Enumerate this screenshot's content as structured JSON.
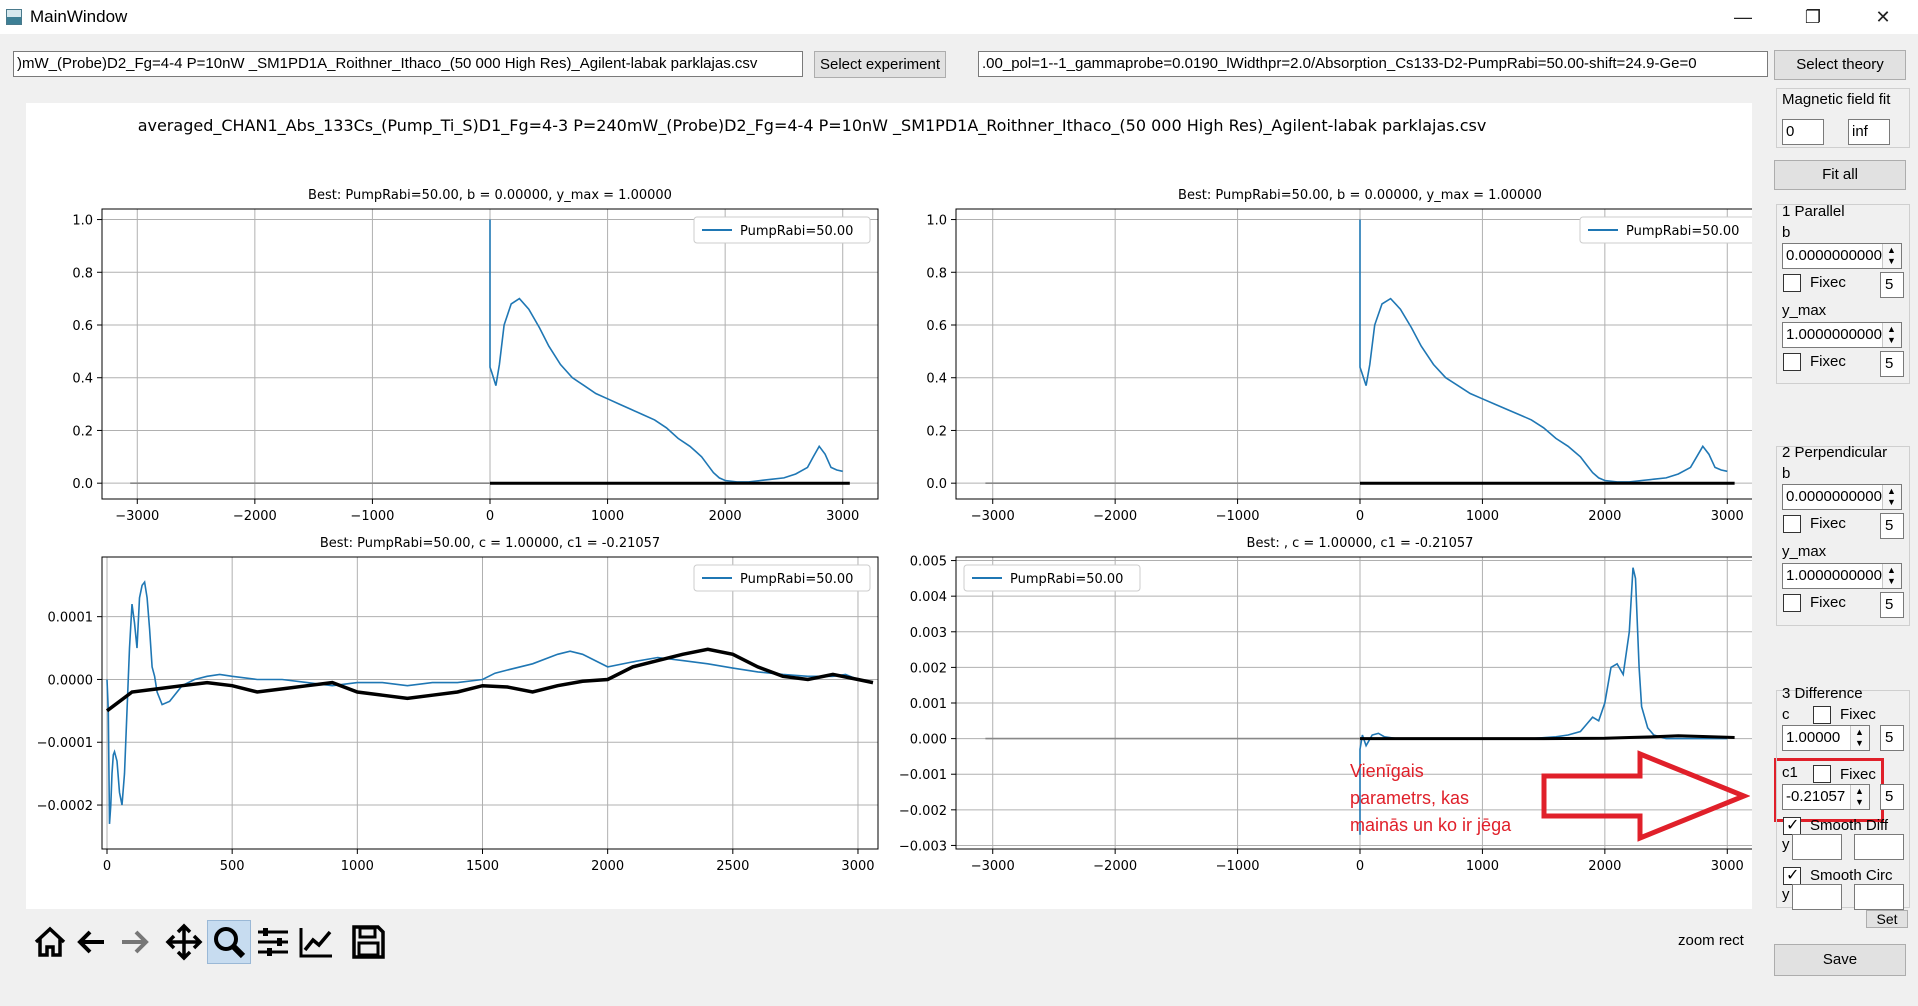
{
  "window": {
    "title": "MainWindow",
    "minimize": "—",
    "maximize": "❐",
    "close": "✕"
  },
  "top": {
    "experiment_path": ")mW_(Probe)D2_Fg=4-4 P=10nW _SM1PD1A_Roithner_Ithaco_(50 000 High Res)_Agilent-labak parklajas.csv",
    "select_experiment": "Select experiment",
    "theory_path": ".00_pol=1--1_gammaprobe=0.0190_lWidthpr=2.0/Absorption_Cs133-D2-PumpRabi=50.00-shift=24.9-Ge=0",
    "select_theory": "Select theory"
  },
  "figure": {
    "suptitle": "averaged_CHAN1_Abs_133Cs_(Pump_Ti_S)D1_Fg=4-3 P=240mW_(Probe)D2_Fg=4-4 P=10nW _SM1PD1A_Roithner_Ithaco_(50 000 High Res)_Agilent-labak parklajas.csv"
  },
  "chart_data": [
    {
      "type": "line",
      "title": "Best: PumpRabi=50.00, b = 0.00000, y_max = 1.00000",
      "xlim": [
        -3300,
        3300
      ],
      "ylim": [
        -0.06,
        1.04
      ],
      "xticks": [
        -3000,
        -2000,
        -1000,
        0,
        1000,
        2000,
        3000
      ],
      "yticks": [
        0.0,
        0.2,
        0.4,
        0.6,
        0.8,
        1.0
      ],
      "ytick_labels": [
        "0.0",
        "0.2",
        "0.4",
        "0.6",
        "0.8",
        "1.0"
      ],
      "grid": true,
      "legend": "upper-right",
      "series": [
        {
          "name": "PumpRabi=50.00",
          "color": "#1f77b4",
          "x": [
            0,
            0,
            15,
            50,
            80,
            120,
            180,
            250,
            330,
            420,
            500,
            600,
            700,
            800,
            900,
            1000,
            1100,
            1200,
            1300,
            1400,
            1500,
            1600,
            1700,
            1750,
            1800,
            1850,
            1900,
            1950,
            2000,
            2100,
            2200,
            2300,
            2400,
            2500,
            2600,
            2700,
            2750,
            2800,
            2850,
            2900,
            2950,
            3000
          ],
          "y": [
            1.0,
            0.44,
            0.42,
            0.37,
            0.45,
            0.6,
            0.68,
            0.7,
            0.66,
            0.59,
            0.52,
            0.45,
            0.4,
            0.37,
            0.34,
            0.32,
            0.3,
            0.28,
            0.26,
            0.24,
            0.21,
            0.17,
            0.14,
            0.12,
            0.1,
            0.07,
            0.04,
            0.02,
            0.01,
            0.005,
            0.005,
            0.01,
            0.015,
            0.02,
            0.035,
            0.06,
            0.1,
            0.14,
            0.11,
            0.06,
            0.05,
            0.045
          ]
        },
        {
          "color": "#000000",
          "x": [
            0,
            3060
          ],
          "y": [
            0,
            0
          ]
        },
        {
          "color": "#888888",
          "x": [
            -3060,
            0
          ],
          "y": [
            0,
            0
          ]
        }
      ]
    },
    {
      "type": "line",
      "title": "Best: PumpRabi=50.00, b = 0.00000, y_max = 1.00000",
      "xlim": [
        -3300,
        3300
      ],
      "ylim": [
        -0.06,
        1.04
      ],
      "xticks": [
        -3000,
        -2000,
        -1000,
        0,
        1000,
        2000,
        3000
      ],
      "yticks": [
        0.0,
        0.2,
        0.4,
        0.6,
        0.8,
        1.0
      ],
      "ytick_labels": [
        "0.0",
        "0.2",
        "0.4",
        "0.6",
        "0.8",
        "1.0"
      ],
      "grid": true,
      "legend": "upper-right",
      "series": [
        {
          "name": "PumpRabi=50.00",
          "color": "#1f77b4",
          "x": [
            0,
            0,
            15,
            50,
            80,
            120,
            180,
            250,
            330,
            420,
            500,
            600,
            700,
            800,
            900,
            1000,
            1100,
            1200,
            1300,
            1400,
            1500,
            1600,
            1700,
            1750,
            1800,
            1850,
            1900,
            1950,
            2000,
            2100,
            2200,
            2300,
            2400,
            2500,
            2600,
            2700,
            2750,
            2800,
            2850,
            2900,
            2950,
            3000
          ],
          "y": [
            1.0,
            0.44,
            0.42,
            0.37,
            0.45,
            0.6,
            0.68,
            0.7,
            0.66,
            0.59,
            0.52,
            0.45,
            0.4,
            0.37,
            0.34,
            0.32,
            0.3,
            0.28,
            0.26,
            0.24,
            0.21,
            0.17,
            0.14,
            0.12,
            0.1,
            0.07,
            0.04,
            0.02,
            0.01,
            0.005,
            0.005,
            0.01,
            0.015,
            0.02,
            0.035,
            0.06,
            0.1,
            0.14,
            0.11,
            0.06,
            0.05,
            0.045
          ]
        },
        {
          "color": "#000000",
          "x": [
            0,
            3060
          ],
          "y": [
            0,
            0
          ]
        },
        {
          "color": "#888888",
          "x": [
            -3060,
            0
          ],
          "y": [
            0,
            0
          ]
        }
      ]
    },
    {
      "type": "line",
      "title": "Best: PumpRabi=50.00, c = 1.00000, c1 = -0.21057",
      "xlim": [
        -20,
        3080
      ],
      "ylim": [
        -0.00027,
        0.000195
      ],
      "xticks": [
        0,
        500,
        1000,
        1500,
        2000,
        2500,
        3000
      ],
      "yticks": [
        -0.0002,
        -0.0001,
        0.0,
        0.0001
      ],
      "ytick_labels": [
        "−0.0002",
        "−0.0001",
        "0.0000",
        "0.0001"
      ],
      "grid": true,
      "legend": "upper-right",
      "series": [
        {
          "name": "PumpRabi=50.00",
          "color": "#1f77b4",
          "x": [
            0,
            5,
            10,
            15,
            20,
            25,
            30,
            40,
            50,
            60,
            70,
            80,
            90,
            100,
            110,
            120,
            130,
            140,
            150,
            160,
            170,
            180,
            190,
            200,
            220,
            250,
            300,
            350,
            400,
            450,
            500,
            600,
            700,
            800,
            900,
            1000,
            1100,
            1200,
            1300,
            1400,
            1500,
            1550,
            1600,
            1700,
            1800,
            1850,
            1900,
            2000,
            2100,
            2200,
            2300,
            2400,
            2500,
            2600,
            2700,
            2800,
            2900,
            2950,
            3000
          ],
          "y": [
            0,
            -5e-05,
            -0.00023,
            -0.0002,
            -0.00015,
            -0.00012,
            -0.000115,
            -0.00013,
            -0.00018,
            -0.0002,
            -0.00015,
            -5e-05,
            5e-05,
            0.00012,
            9e-05,
            5e-05,
            0.00013,
            0.00015,
            0.000155,
            0.00013,
            8e-05,
            2e-05,
            5e-06,
            -2e-05,
            -4e-05,
            -3.5e-05,
            -1e-05,
            0.0,
            5e-06,
            8e-06,
            5e-06,
            0.0,
            0.0,
            -5e-06,
            -1e-05,
            -5e-06,
            -5e-06,
            -1e-05,
            -5e-06,
            -5e-06,
            0.0,
            1e-05,
            1.5e-05,
            2.5e-05,
            4e-05,
            4.5e-05,
            4e-05,
            2e-05,
            2.8e-05,
            3.5e-05,
            3e-05,
            2.5e-05,
            1.8e-05,
            1.2e-05,
            8e-06,
            5e-06,
            5e-06,
            8e-06,
            0.0
          ]
        },
        {
          "color": "#000000",
          "x": [
            0,
            100,
            200,
            300,
            400,
            500,
            600,
            700,
            800,
            900,
            1000,
            1100,
            1200,
            1300,
            1400,
            1500,
            1600,
            1700,
            1800,
            1900,
            2000,
            2100,
            2200,
            2300,
            2400,
            2500,
            2600,
            2700,
            2800,
            2900,
            3000,
            3060
          ],
          "y": [
            -5e-05,
            -2e-05,
            -1.5e-05,
            -1e-05,
            -5e-06,
            -1e-05,
            -2e-05,
            -1.5e-05,
            -1e-05,
            -5e-06,
            -2e-05,
            -2.5e-05,
            -3e-05,
            -2.5e-05,
            -2e-05,
            -1e-05,
            -1.2e-05,
            -2e-05,
            -1e-05,
            -3e-06,
            0.0,
            2e-05,
            3e-05,
            4e-05,
            4.8e-05,
            4e-05,
            2e-05,
            5e-06,
            0.0,
            8e-06,
            0.0,
            -5e-06
          ]
        }
      ]
    },
    {
      "type": "line",
      "title": "Best: , c = 1.00000, c1 = -0.21057",
      "xlim": [
        -3300,
        3300
      ],
      "ylim": [
        -0.0031,
        0.0051
      ],
      "xticks": [
        -3000,
        -2000,
        -1000,
        0,
        1000,
        2000,
        3000
      ],
      "yticks": [
        -0.003,
        -0.002,
        -0.001,
        0.0,
        0.001,
        0.002,
        0.003,
        0.004,
        0.005
      ],
      "ytick_labels": [
        "−0.003",
        "−0.002",
        "−0.001",
        "0.000",
        "0.001",
        "0.002",
        "0.003",
        "0.004",
        "0.005"
      ],
      "grid": true,
      "legend": "upper-left",
      "series": [
        {
          "name": "PumpRabi=50.00",
          "color": "#1f77b4",
          "x": [
            0,
            0,
            20,
            50,
            100,
            150,
            200,
            300,
            400,
            600,
            800,
            1000,
            1200,
            1400,
            1600,
            1700,
            1800,
            1850,
            1900,
            1950,
            2000,
            2050,
            2100,
            2150,
            2200,
            2230,
            2250,
            2280,
            2300,
            2350,
            2400,
            2450,
            2500,
            2600,
            2800,
            3000
          ],
          "y": [
            -0.0027,
            -0.0003,
            0.0001,
            -0.0002,
            0.0001,
            0.00015,
            5e-05,
            0.0,
            0.0,
            0.0,
            0.0,
            0.0,
            0.0,
            0.0,
            5e-05,
            0.0001,
            0.0002,
            0.0004,
            0.0006,
            0.0005,
            0.001,
            0.002,
            0.0021,
            0.0018,
            0.003,
            0.0048,
            0.0045,
            0.002,
            0.0009,
            0.0003,
            0.0001,
            5e-05,
            0.0,
            0.0,
            0.0,
            0.0
          ]
        },
        {
          "color": "#000000",
          "x": [
            0,
            1500,
            2000,
            2200,
            2400,
            2600,
            2800,
            3060
          ],
          "y": [
            0,
            0,
            1e-05,
            3e-05,
            5e-05,
            8e-05,
            6e-05,
            3e-05
          ]
        },
        {
          "color": "#888888",
          "x": [
            -3060,
            0
          ],
          "y": [
            0,
            0
          ]
        }
      ]
    }
  ],
  "annotation": {
    "lines": [
      "Vienīgais",
      "parametrs, kas",
      "mainās un ko ir jēga"
    ]
  },
  "toolbar": {
    "status": "zoom rect"
  },
  "panel": {
    "magnetic_title": "Magnetic field fit",
    "mag_min": "0",
    "mag_max": "inf",
    "fit_all": "Fit all",
    "parallel": {
      "title": "1 Parallel",
      "b_label": "b",
      "b_value": "0.0000000000",
      "fixed": "Fixec",
      "b_n": "5",
      "ymax_label": "y_max",
      "ymax_value": "1.0000000000",
      "ymax_n": "5"
    },
    "perpendicular": {
      "title": "2 Perpendicular",
      "b_label": "b",
      "b_value": "0.0000000000",
      "fixed": "Fixec",
      "b_n": "5",
      "ymax_label": "y_max",
      "ymax_value": "1.0000000000",
      "ymax_n": "5"
    },
    "difference": {
      "title": "3 Difference",
      "c_label": "c",
      "c_fixed": "Fixec",
      "c_value": "1.00000",
      "c_n": "5",
      "c1_label": "c1",
      "c1_fixed": "Fixec",
      "c1_value": "-0.21057",
      "c1_n": "5",
      "smooth_diff": "Smooth Diff",
      "smooth_diff_y": "y",
      "smooth_circ": "Smooth Circ",
      "smooth_circ_y": "y",
      "set": "Set"
    },
    "save": "Save"
  }
}
